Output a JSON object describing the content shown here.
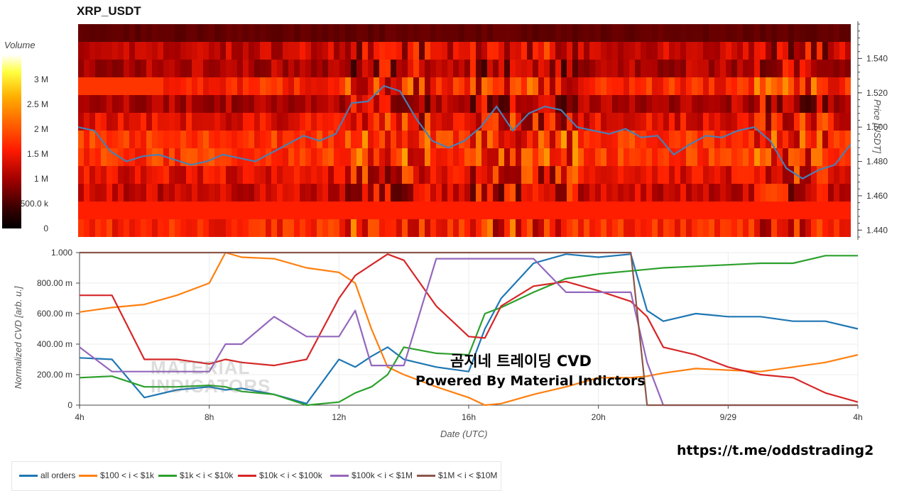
{
  "title": "XRP_USDT",
  "colorbar": {
    "title": "Volume",
    "labels": [
      "3 M",
      "2.5 M",
      "2 M",
      "1.5 M",
      "1 M",
      "500.0 k",
      "0"
    ],
    "values": [
      3000000,
      2500000,
      2000000,
      1500000,
      1000000,
      500000,
      0
    ],
    "max": 3500000
  },
  "price_axis": {
    "title": "Price [USDT]",
    "ticks": [
      "1.540",
      "1.520",
      "1.500",
      "1.480",
      "1.460",
      "1.440"
    ],
    "tick_values": [
      1.54,
      1.52,
      1.5,
      1.48,
      1.46,
      1.44
    ],
    "ylim": [
      1.436,
      1.56
    ]
  },
  "cvd_axis": {
    "title": "Normalized CVD [arb. u.]",
    "ticks": [
      "1.000",
      "800.00 m",
      "600.00 m",
      "400.00 m",
      "200.00 m",
      "0"
    ],
    "tick_values": [
      1.0,
      0.8,
      0.6,
      0.4,
      0.2,
      0.0
    ]
  },
  "x_axis": {
    "title": "Date (UTC)",
    "ticks": [
      "4h",
      "8h",
      "12h",
      "16h",
      "20h",
      "9/29",
      "4h"
    ],
    "tick_hours": [
      4,
      8,
      12,
      16,
      20,
      24,
      28
    ],
    "xlim": [
      4,
      28
    ]
  },
  "watermark": {
    "line1": "곰지네 트레이딩 CVD",
    "line2": "Powered By Material Indictors",
    "faded_line1": "MATERIAL",
    "faded_line2": "INDICATORS"
  },
  "url": "https://t.me/oddstrading2",
  "colors": {
    "price_line": "#4a7fb5",
    "all": "#1f77b4",
    "s100": "#ff7f0e",
    "s1k": "#2ca02c",
    "s10k": "#d62728",
    "s100k": "#9467bd",
    "s1m": "#8c564b"
  },
  "chart_data": [
    {
      "type": "heatmap",
      "title": "XRP_USDT",
      "ylabel": "Price [USDT]",
      "colorbar_label": "Volume",
      "price_series": {
        "x_hours": [
          4,
          4.5,
          5,
          5.5,
          6,
          6.5,
          7,
          7.5,
          8,
          8.5,
          9,
          9.5,
          10,
          10.5,
          11,
          11.5,
          12,
          12.5,
          13,
          13.5,
          14,
          14.5,
          15,
          15.5,
          16,
          16.5,
          17,
          17.5,
          18,
          18.5,
          19,
          19.5,
          20,
          20.5,
          21,
          21.5,
          22,
          22.5,
          23,
          23.5,
          24,
          24.5,
          25,
          25.5,
          26,
          26.5,
          27,
          27.5,
          28
        ],
        "price": [
          1.5,
          1.498,
          1.486,
          1.48,
          1.483,
          1.484,
          1.481,
          1.478,
          1.48,
          1.484,
          1.482,
          1.48,
          1.485,
          1.49,
          1.495,
          1.492,
          1.496,
          1.514,
          1.515,
          1.524,
          1.521,
          1.505,
          1.492,
          1.488,
          1.492,
          1.5,
          1.512,
          1.498,
          1.508,
          1.512,
          1.51,
          1.5,
          1.498,
          1.496,
          1.499,
          1.494,
          1.495,
          1.484,
          1.49,
          1.495,
          1.494,
          1.498,
          1.5,
          1.492,
          1.476,
          1.47,
          1.475,
          1.478,
          1.49
        ]
      }
    },
    {
      "type": "line",
      "xlabel": "Date (UTC)",
      "ylabel": "Normalized CVD [arb. u.]",
      "x": [
        4,
        5,
        6,
        7,
        8,
        8.5,
        9,
        10,
        11,
        12,
        12.5,
        13,
        13.5,
        14,
        15,
        16,
        16.5,
        17,
        18,
        19,
        20,
        21,
        21.5,
        22,
        23,
        24,
        25,
        26,
        27,
        28
      ],
      "series": [
        {
          "name": "all orders",
          "values": [
            0.31,
            0.3,
            0.05,
            0.1,
            0.12,
            0.1,
            0.11,
            0.07,
            0.01,
            0.3,
            0.25,
            0.32,
            0.38,
            0.3,
            0.25,
            0.22,
            0.5,
            0.7,
            0.93,
            0.99,
            0.97,
            0.99,
            0.62,
            0.55,
            0.6,
            0.58,
            0.58,
            0.55,
            0.55,
            0.5
          ]
        },
        {
          "name": "$100 < i < $1k",
          "values": [
            0.61,
            0.64,
            0.66,
            0.72,
            0.8,
            1.0,
            0.97,
            0.96,
            0.9,
            0.87,
            0.8,
            0.5,
            0.25,
            0.2,
            0.12,
            0.05,
            0.0,
            0.01,
            0.07,
            0.12,
            0.18,
            0.18,
            0.19,
            0.21,
            0.24,
            0.23,
            0.22,
            0.25,
            0.28,
            0.33
          ]
        },
        {
          "name": "$1k < i < $10k",
          "values": [
            0.18,
            0.19,
            0.12,
            0.12,
            0.13,
            0.12,
            0.09,
            0.07,
            0.0,
            0.02,
            0.08,
            0.12,
            0.2,
            0.38,
            0.34,
            0.33,
            0.6,
            0.64,
            0.74,
            0.83,
            0.86,
            0.88,
            0.89,
            0.9,
            0.91,
            0.92,
            0.93,
            0.93,
            0.98,
            0.98
          ]
        },
        {
          "name": "$10k < i < $100k",
          "values": [
            0.72,
            0.72,
            0.3,
            0.3,
            0.27,
            0.3,
            0.28,
            0.26,
            0.3,
            0.7,
            0.85,
            0.92,
            0.99,
            0.95,
            0.65,
            0.45,
            0.44,
            0.65,
            0.78,
            0.81,
            0.75,
            0.68,
            0.58,
            0.38,
            0.33,
            0.25,
            0.2,
            0.18,
            0.08,
            0.02
          ]
        },
        {
          "name": "$100k < i < $1M",
          "values": [
            0.38,
            0.22,
            0.22,
            0.22,
            0.22,
            0.4,
            0.4,
            0.58,
            0.45,
            0.45,
            0.62,
            0.26,
            0.26,
            0.26,
            0.96,
            0.96,
            0.96,
            0.96,
            0.96,
            0.74,
            0.74,
            0.74,
            0.28,
            0.0,
            0.0,
            0.0,
            0.0,
            0.0,
            0.0,
            0.0
          ]
        },
        {
          "name": "$1M < i < $10M",
          "values": [
            1.0,
            1.0,
            1.0,
            1.0,
            1.0,
            1.0,
            1.0,
            1.0,
            1.0,
            1.0,
            1.0,
            1.0,
            1.0,
            1.0,
            1.0,
            1.0,
            1.0,
            1.0,
            1.0,
            1.0,
            1.0,
            1.0,
            0.0,
            0.0,
            0.0,
            0.0,
            0.0,
            0.0,
            0.0,
            0.0
          ]
        }
      ],
      "ylim": [
        0,
        1.0
      ],
      "legend_position": "bottom"
    }
  ]
}
